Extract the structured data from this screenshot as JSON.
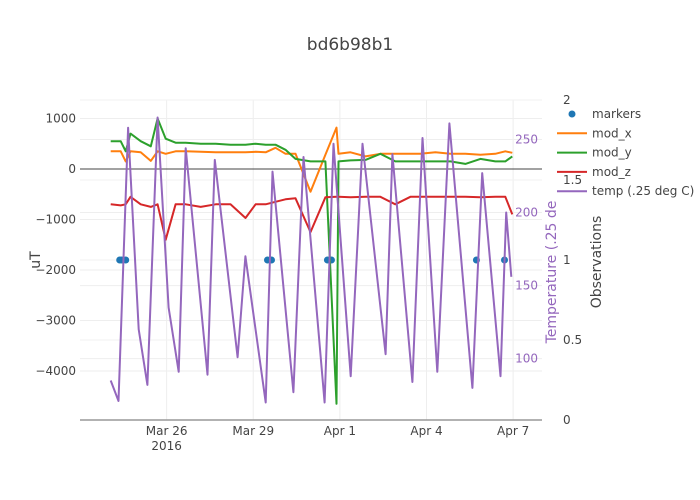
{
  "chart_data": {
    "type": "line",
    "title": "bd6b98b1",
    "xaxis": {
      "range": [
        "2016-03-23 00:00",
        "2016-04-08 00:00"
      ],
      "ticks": [
        {
          "value": "2016-03-26 00:00",
          "label": "Mar 26",
          "sublabel": "2016"
        },
        {
          "value": "2016-03-29 00:00",
          "label": "Mar 29"
        },
        {
          "value": "2016-04-01 00:00",
          "label": "Apr 1"
        },
        {
          "value": "2016-04-04 00:00",
          "label": "Apr 4"
        },
        {
          "value": "2016-04-07 00:00",
          "label": "Apr 7"
        }
      ]
    },
    "yaxis": {
      "label": "uT",
      "range": [
        -4970,
        1366
      ],
      "ticks": [
        1000,
        0,
        -1000,
        -2000,
        -3000,
        -4000
      ],
      "tick_labels": [
        "1000",
        "0",
        "−1000",
        "−2000",
        "−3000",
        "−4000"
      ]
    },
    "yaxis_temp": {
      "label": "Temperature (.25 de",
      "range": [
        58,
        277
      ],
      "ticks": [
        100,
        150,
        200,
        250
      ],
      "tick_labels": [
        "100",
        "150",
        "200",
        "250"
      ],
      "color": "#9467bd"
    },
    "yaxis_obs": {
      "label": "Observations",
      "range": [
        0,
        2
      ],
      "ticks": [
        0,
        0.5,
        1,
        1.5,
        2
      ],
      "tick_labels": [
        "0",
        "0.5",
        "1",
        "1.5",
        "2"
      ]
    },
    "legend": {
      "position": "right"
    },
    "series": [
      {
        "name": "markers",
        "mode": "markers",
        "axis": "obs",
        "color": "#1f77b4",
        "x": [
          "2016-03-24 09:00",
          "2016-03-24 10:40",
          "2016-03-24 14:00",
          "2016-03-29 11:50",
          "2016-03-29 15:10",
          "2016-03-31 13:40",
          "2016-03-31 17:00",
          "2016-04-05 17:30",
          "2016-04-06 16:50"
        ],
        "y": [
          1,
          1,
          1,
          1,
          1,
          1,
          1,
          1,
          1
        ]
      },
      {
        "name": "mod_x",
        "mode": "lines",
        "axis": "uT",
        "color": "#ff7f0e",
        "xref": "mod_x_times",
        "y": [
          350,
          350,
          150,
          350,
          330,
          160,
          350,
          300,
          350,
          350,
          340,
          330,
          330,
          330,
          340,
          330,
          420,
          300,
          300,
          -450,
          280,
          820,
          300,
          330,
          250,
          300,
          300,
          300,
          300,
          330,
          300,
          300,
          280,
          300,
          350,
          320
        ]
      },
      {
        "name": "mod_y",
        "mode": "lines",
        "axis": "uT",
        "color": "#2ca02c",
        "xref": "mod_x_times",
        "y": [
          550,
          550,
          350,
          700,
          550,
          450,
          1000,
          600,
          520,
          520,
          500,
          500,
          480,
          480,
          500,
          480,
          480,
          380,
          200,
          150,
          150,
          -4650,
          150,
          170,
          180,
          300,
          150,
          150,
          150,
          150,
          150,
          100,
          200,
          150,
          150,
          250
        ]
      },
      {
        "name": "mod_z",
        "mode": "lines",
        "axis": "uT",
        "color": "#d62728",
        "xref": "mod_x_times",
        "y": [
          -700,
          -720,
          -700,
          -550,
          -700,
          -750,
          -700,
          -1400,
          -700,
          -700,
          -750,
          -700,
          -700,
          -970,
          -700,
          -700,
          -650,
          -600,
          -580,
          -1250,
          -560,
          -550,
          -550,
          -560,
          -550,
          -550,
          -700,
          -550,
          -550,
          -550,
          -550,
          -550,
          -560,
          -550,
          -550,
          -900
        ]
      },
      {
        "name": "temp (.25 deg C)",
        "mode": "lines",
        "axis": "temp",
        "color": "#9467bd",
        "x": [
          "2016-03-24 01:30",
          "2016-03-24 08:00",
          "2016-03-24 16:00",
          "2016-03-25 00:45",
          "2016-03-25 08:00",
          "2016-03-25 16:30",
          "2016-03-26 01:40",
          "2016-03-26 10:00",
          "2016-03-26 15:50",
          "2016-03-27 10:00",
          "2016-03-27 16:00",
          "2016-03-28 11:00",
          "2016-03-28 17:30",
          "2016-03-29 10:20",
          "2016-03-29 16:00",
          "2016-03-30 09:20",
          "2016-03-30 17:45",
          "2016-03-31 11:20",
          "2016-03-31 18:40",
          "2016-04-01 09:00",
          "2016-04-01 18:50",
          "2016-04-02 14:00",
          "2016-04-02 19:40",
          "2016-04-03 12:15",
          "2016-04-03 20:40",
          "2016-04-04 09:00",
          "2016-04-04 19:00",
          "2016-04-05 14:10",
          "2016-04-05 22:20",
          "2016-04-06 13:30",
          "2016-04-06 18:15",
          "2016-04-06 22:30"
        ],
        "y": [
          85,
          71,
          258,
          120,
          82,
          265,
          135,
          91,
          244,
          89,
          236,
          101,
          170,
          70,
          228,
          77,
          238,
          70,
          247,
          88,
          247,
          103,
          240,
          84,
          251,
          91,
          261,
          80,
          227,
          88,
          200,
          156
        ]
      }
    ],
    "mod_x_times": [
      "2016-03-24 01:30",
      "2016-03-24 09:50",
      "2016-03-24 14:00",
      "2016-03-24 18:00",
      "2016-03-25 02:25",
      "2016-03-25 10:50",
      "2016-03-25 16:30",
      "2016-03-25 23:15",
      "2016-03-26 07:30",
      "2016-03-26 15:50",
      "2016-03-27 04:20",
      "2016-03-27 16:45",
      "2016-03-28 05:05",
      "2016-03-28 17:35",
      "2016-03-29 01:55",
      "2016-03-29 10:20",
      "2016-03-29 18:30",
      "2016-03-30 02:50",
      "2016-03-30 11:05",
      "2016-03-30 23:35",
      "2016-03-31 12:00",
      "2016-03-31 21:10",
      "2016-03-31 22:50",
      "2016-04-01 08:50",
      "2016-04-01 21:20",
      "2016-04-02 09:40",
      "2016-04-02 22:05",
      "2016-04-03 10:35",
      "2016-04-03 18:55",
      "2016-04-04 07:25",
      "2016-04-04 19:50",
      "2016-04-05 08:20",
      "2016-04-05 20:50",
      "2016-04-06 09:10",
      "2016-04-06 17:30",
      "2016-04-06 23:20"
    ]
  }
}
